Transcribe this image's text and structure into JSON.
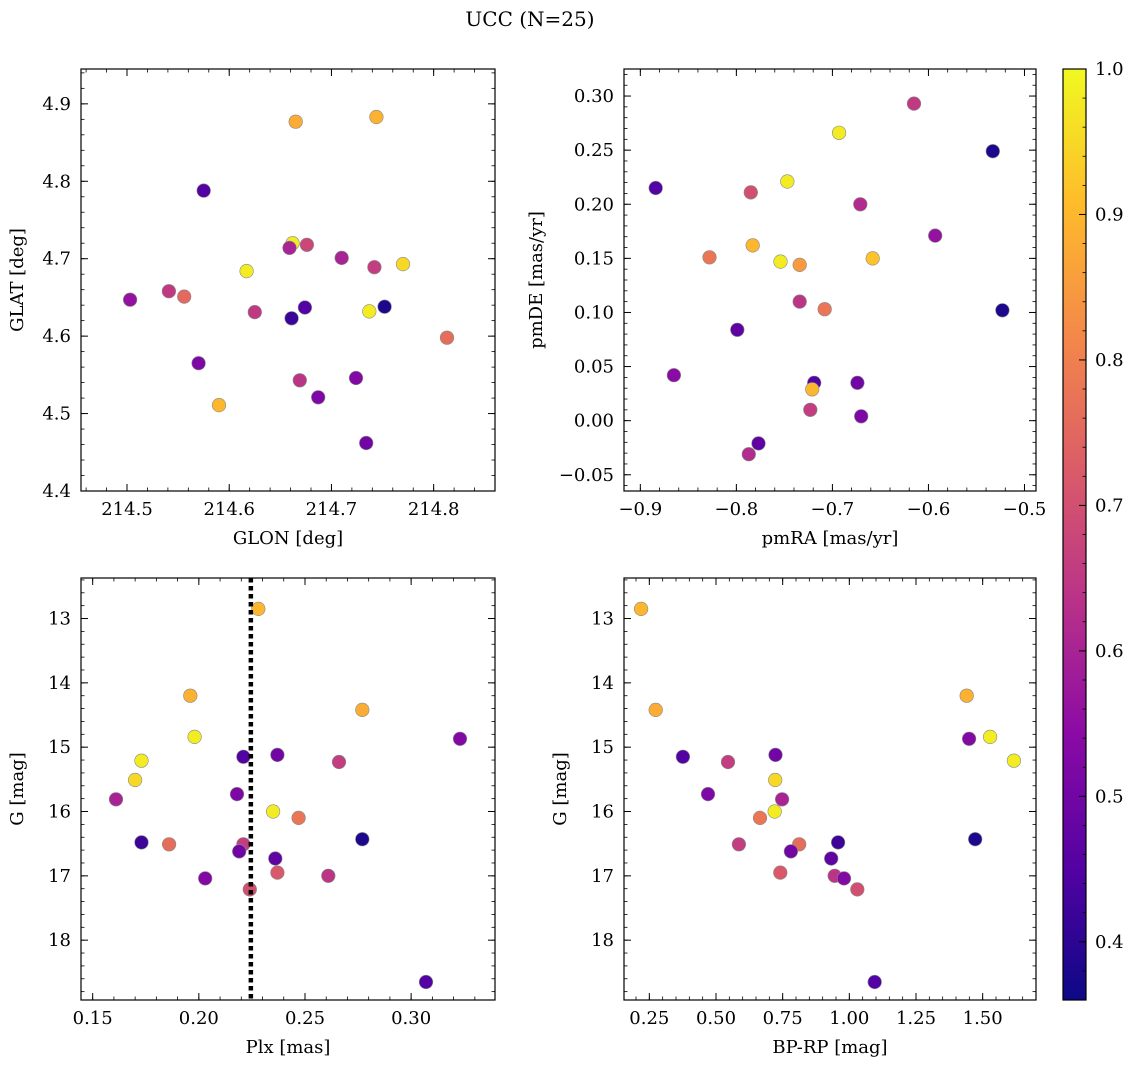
{
  "figure": {
    "title": "UCC (N=25)",
    "colorbar": {
      "colormap": "plasma",
      "range": [
        0.36,
        1.0
      ],
      "ticks": [
        0.4,
        0.5,
        0.6,
        0.7,
        0.8,
        0.9,
        1.0
      ],
      "tick_labels": [
        "0.4",
        "0.5",
        "0.6",
        "0.7",
        "0.8",
        "0.9",
        "1.0"
      ]
    }
  },
  "chart_data": [
    {
      "type": "scatter",
      "id": "glon-glat",
      "xlabel": "GLON [deg]",
      "ylabel": "GLAT [deg]",
      "xlim": [
        214.455,
        214.86
      ],
      "ylim": [
        4.4,
        4.945
      ],
      "xticks": [
        214.5,
        214.6,
        214.7,
        214.8
      ],
      "xtick_labels": [
        "214.5",
        "214.6",
        "214.7",
        "214.8"
      ],
      "yticks": [
        4.4,
        4.5,
        4.6,
        4.7,
        4.8,
        4.9
      ],
      "ytick_labels": [
        "4.4",
        "4.5",
        "4.6",
        "4.7",
        "4.8",
        "4.9"
      ],
      "y_inverted": false,
      "points": [
        {
          "x": 214.665,
          "y": 4.877,
          "c": 0.88
        },
        {
          "x": 214.744,
          "y": 4.883,
          "c": 0.89
        },
        {
          "x": 214.575,
          "y": 4.788,
          "c": 0.45
        },
        {
          "x": 214.662,
          "y": 4.72,
          "c": 0.98
        },
        {
          "x": 214.659,
          "y": 4.714,
          "c": 0.6
        },
        {
          "x": 214.676,
          "y": 4.718,
          "c": 0.68
        },
        {
          "x": 214.71,
          "y": 4.701,
          "c": 0.6
        },
        {
          "x": 214.742,
          "y": 4.689,
          "c": 0.66
        },
        {
          "x": 214.77,
          "y": 4.693,
          "c": 0.95
        },
        {
          "x": 214.617,
          "y": 4.684,
          "c": 0.98
        },
        {
          "x": 214.503,
          "y": 4.647,
          "c": 0.56
        },
        {
          "x": 214.541,
          "y": 4.658,
          "c": 0.65
        },
        {
          "x": 214.556,
          "y": 4.651,
          "c": 0.75
        },
        {
          "x": 214.625,
          "y": 4.631,
          "c": 0.65
        },
        {
          "x": 214.661,
          "y": 4.623,
          "c": 0.42
        },
        {
          "x": 214.674,
          "y": 4.637,
          "c": 0.45
        },
        {
          "x": 214.737,
          "y": 4.632,
          "c": 0.98
        },
        {
          "x": 214.752,
          "y": 4.638,
          "c": 0.38
        },
        {
          "x": 214.813,
          "y": 4.598,
          "c": 0.76
        },
        {
          "x": 214.57,
          "y": 4.565,
          "c": 0.52
        },
        {
          "x": 214.669,
          "y": 4.543,
          "c": 0.64
        },
        {
          "x": 214.724,
          "y": 4.546,
          "c": 0.53
        },
        {
          "x": 214.687,
          "y": 4.521,
          "c": 0.52
        },
        {
          "x": 214.59,
          "y": 4.511,
          "c": 0.9
        },
        {
          "x": 214.734,
          "y": 4.462,
          "c": 0.5
        }
      ]
    },
    {
      "type": "scatter",
      "id": "pmra-pmde",
      "xlabel": "pmRA [mas/yr]",
      "ylabel": "pmDE [mas/yr]",
      "xlim": [
        -0.917,
        -0.488
      ],
      "ylim": [
        -0.065,
        0.325
      ],
      "xticks": [
        -0.9,
        -0.8,
        -0.7,
        -0.6,
        -0.5
      ],
      "xtick_labels": [
        "−0.9",
        "−0.8",
        "−0.7",
        "−0.6",
        "−0.5"
      ],
      "yticks": [
        -0.05,
        0.0,
        0.05,
        0.1,
        0.15,
        0.2,
        0.25,
        0.3
      ],
      "ytick_labels": [
        "−0.05",
        "0.00",
        "0.05",
        "0.10",
        "0.15",
        "0.20",
        "0.25",
        "0.30"
      ],
      "y_inverted": false,
      "points": [
        {
          "x": -0.615,
          "y": 0.293,
          "c": 0.65
        },
        {
          "x": -0.693,
          "y": 0.266,
          "c": 0.98
        },
        {
          "x": -0.533,
          "y": 0.249,
          "c": 0.38
        },
        {
          "x": -0.747,
          "y": 0.221,
          "c": 0.98
        },
        {
          "x": -0.884,
          "y": 0.215,
          "c": 0.45
        },
        {
          "x": -0.785,
          "y": 0.211,
          "c": 0.7
        },
        {
          "x": -0.671,
          "y": 0.2,
          "c": 0.62
        },
        {
          "x": -0.593,
          "y": 0.171,
          "c": 0.56
        },
        {
          "x": -0.783,
          "y": 0.162,
          "c": 0.9
        },
        {
          "x": -0.828,
          "y": 0.151,
          "c": 0.78
        },
        {
          "x": -0.754,
          "y": 0.147,
          "c": 0.98
        },
        {
          "x": -0.734,
          "y": 0.144,
          "c": 0.85
        },
        {
          "x": -0.658,
          "y": 0.15,
          "c": 0.92
        },
        {
          "x": -0.734,
          "y": 0.11,
          "c": 0.64
        },
        {
          "x": -0.708,
          "y": 0.103,
          "c": 0.78
        },
        {
          "x": -0.523,
          "y": 0.102,
          "c": 0.38
        },
        {
          "x": -0.799,
          "y": 0.084,
          "c": 0.47
        },
        {
          "x": -0.865,
          "y": 0.042,
          "c": 0.54
        },
        {
          "x": -0.719,
          "y": 0.035,
          "c": 0.45
        },
        {
          "x": -0.674,
          "y": 0.035,
          "c": 0.5
        },
        {
          "x": -0.721,
          "y": 0.029,
          "c": 0.9
        },
        {
          "x": -0.723,
          "y": 0.01,
          "c": 0.66
        },
        {
          "x": -0.67,
          "y": 0.004,
          "c": 0.52
        },
        {
          "x": -0.777,
          "y": -0.021,
          "c": 0.47
        },
        {
          "x": -0.787,
          "y": -0.031,
          "c": 0.62
        }
      ]
    },
    {
      "type": "scatter",
      "id": "plx-g",
      "xlabel": "Plx [mas]",
      "ylabel": "G [mag]",
      "xlim": [
        0.1445,
        0.3395
      ],
      "ylim": [
        12.37,
        18.93
      ],
      "xticks": [
        0.15,
        0.2,
        0.25,
        0.3
      ],
      "xtick_labels": [
        "0.15",
        "0.20",
        "0.25",
        "0.30"
      ],
      "yticks": [
        13,
        14,
        15,
        16,
        17,
        18
      ],
      "ytick_labels": [
        "13",
        "14",
        "15",
        "16",
        "17",
        "18"
      ],
      "y_inverted": true,
      "vline": {
        "x": 0.2245,
        "style": "dotted"
      },
      "points": [
        {
          "x": 0.228,
          "y": 12.85,
          "c": 0.9
        },
        {
          "x": 0.196,
          "y": 14.2,
          "c": 0.89
        },
        {
          "x": 0.277,
          "y": 14.42,
          "c": 0.88
        },
        {
          "x": 0.198,
          "y": 14.84,
          "c": 0.98
        },
        {
          "x": 0.323,
          "y": 14.87,
          "c": 0.53
        },
        {
          "x": 0.237,
          "y": 15.12,
          "c": 0.5
        },
        {
          "x": 0.221,
          "y": 15.15,
          "c": 0.45
        },
        {
          "x": 0.173,
          "y": 15.21,
          "c": 0.98
        },
        {
          "x": 0.266,
          "y": 15.23,
          "c": 0.66
        },
        {
          "x": 0.17,
          "y": 15.51,
          "c": 0.95
        },
        {
          "x": 0.218,
          "y": 15.73,
          "c": 0.52
        },
        {
          "x": 0.161,
          "y": 15.81,
          "c": 0.6
        },
        {
          "x": 0.235,
          "y": 16.0,
          "c": 0.98
        },
        {
          "x": 0.247,
          "y": 16.1,
          "c": 0.78
        },
        {
          "x": 0.277,
          "y": 16.43,
          "c": 0.38
        },
        {
          "x": 0.173,
          "y": 16.48,
          "c": 0.42
        },
        {
          "x": 0.186,
          "y": 16.51,
          "c": 0.76
        },
        {
          "x": 0.221,
          "y": 16.51,
          "c": 0.66
        },
        {
          "x": 0.219,
          "y": 16.62,
          "c": 0.5
        },
        {
          "x": 0.236,
          "y": 16.73,
          "c": 0.47
        },
        {
          "x": 0.237,
          "y": 16.95,
          "c": 0.72
        },
        {
          "x": 0.261,
          "y": 17.0,
          "c": 0.64
        },
        {
          "x": 0.203,
          "y": 17.04,
          "c": 0.53
        },
        {
          "x": 0.224,
          "y": 17.21,
          "c": 0.7
        },
        {
          "x": 0.307,
          "y": 18.65,
          "c": 0.45
        }
      ]
    },
    {
      "type": "scatter",
      "id": "bprp-g",
      "xlabel": "BP-RP [mag]",
      "ylabel": "G [mag]",
      "xlim": [
        0.155,
        1.7
      ],
      "ylim": [
        12.37,
        18.93
      ],
      "xticks": [
        0.25,
        0.5,
        0.75,
        1.0,
        1.25,
        1.5
      ],
      "xtick_labels": [
        "0.25",
        "0.50",
        "0.75",
        "1.00",
        "1.25",
        "1.50"
      ],
      "yticks": [
        13,
        14,
        15,
        16,
        17,
        18
      ],
      "ytick_labels": [
        "13",
        "14",
        "15",
        "16",
        "17",
        "18"
      ],
      "y_inverted": true,
      "points": [
        {
          "x": 0.219,
          "y": 12.85,
          "c": 0.9
        },
        {
          "x": 1.44,
          "y": 14.2,
          "c": 0.89
        },
        {
          "x": 0.274,
          "y": 14.42,
          "c": 0.88
        },
        {
          "x": 1.528,
          "y": 14.84,
          "c": 0.98
        },
        {
          "x": 1.449,
          "y": 14.87,
          "c": 0.53
        },
        {
          "x": 0.723,
          "y": 15.12,
          "c": 0.5
        },
        {
          "x": 0.376,
          "y": 15.15,
          "c": 0.45
        },
        {
          "x": 1.617,
          "y": 15.21,
          "c": 0.98
        },
        {
          "x": 0.545,
          "y": 15.23,
          "c": 0.66
        },
        {
          "x": 0.722,
          "y": 15.51,
          "c": 0.95
        },
        {
          "x": 0.47,
          "y": 15.73,
          "c": 0.52
        },
        {
          "x": 0.748,
          "y": 15.81,
          "c": 0.6
        },
        {
          "x": 0.72,
          "y": 16.0,
          "c": 0.98
        },
        {
          "x": 0.665,
          "y": 16.1,
          "c": 0.78
        },
        {
          "x": 1.472,
          "y": 16.43,
          "c": 0.38
        },
        {
          "x": 0.958,
          "y": 16.48,
          "c": 0.42
        },
        {
          "x": 0.812,
          "y": 16.51,
          "c": 0.76
        },
        {
          "x": 0.586,
          "y": 16.51,
          "c": 0.66
        },
        {
          "x": 0.781,
          "y": 16.62,
          "c": 0.5
        },
        {
          "x": 0.932,
          "y": 16.73,
          "c": 0.47
        },
        {
          "x": 0.741,
          "y": 16.95,
          "c": 0.72
        },
        {
          "x": 0.945,
          "y": 17.0,
          "c": 0.64
        },
        {
          "x": 0.98,
          "y": 17.04,
          "c": 0.53
        },
        {
          "x": 1.03,
          "y": 17.21,
          "c": 0.7
        },
        {
          "x": 1.095,
          "y": 18.65,
          "c": 0.45
        }
      ]
    }
  ]
}
